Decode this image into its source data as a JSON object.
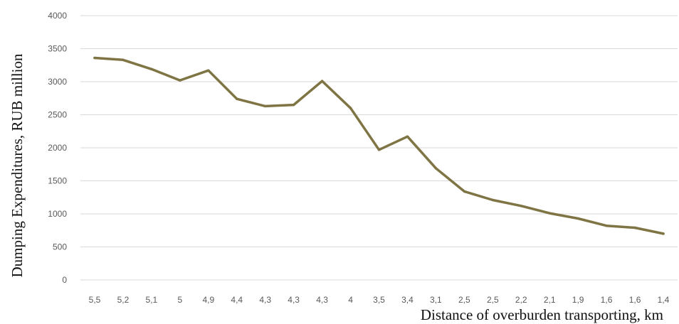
{
  "chart_data": {
    "type": "line",
    "title": "",
    "xlabel": "Distance of overburden transporting, km",
    "ylabel": "Dumping Expenditures, RUB million",
    "categories": [
      "5,5",
      "5,2",
      "5,1",
      "5",
      "4,9",
      "4,4",
      "4,3",
      "4,3",
      "4,3",
      "4",
      "3,5",
      "3,4",
      "3,1",
      "2,5",
      "2,5",
      "2,2",
      "2,1",
      "1,9",
      "1,6",
      "1,6",
      "1,4"
    ],
    "series": [
      {
        "values": [
          3360,
          3330,
          3190,
          3020,
          3170,
          2740,
          2630,
          2650,
          3010,
          2600,
          1970,
          2170,
          1690,
          1340,
          1210,
          1120,
          1010,
          930,
          820,
          790,
          700
        ]
      }
    ],
    "yticks": [
      0,
      500,
      1000,
      1500,
      2000,
      2500,
      3000,
      3500,
      4000
    ],
    "ylim": [
      0,
      4000
    ],
    "grid": true,
    "legend": "none",
    "colors": {
      "line": "#7f7444",
      "grid": "#d9d9d9",
      "tick_text": "#595959"
    }
  }
}
